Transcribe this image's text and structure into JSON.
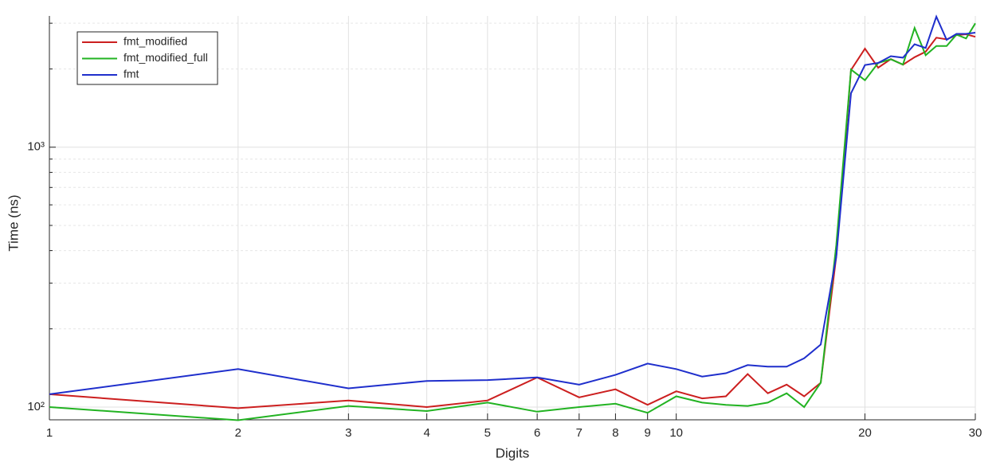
{
  "chart_data": {
    "type": "line",
    "x_label": "Digits",
    "y_label": "Time (ns)",
    "x": [
      1,
      2,
      3,
      4,
      5,
      6,
      7,
      8,
      9,
      10,
      11,
      12,
      13,
      14,
      15,
      16,
      17,
      18,
      19,
      20,
      21,
      22,
      23,
      24,
      25,
      26,
      27,
      28,
      29,
      30
    ],
    "series": [
      {
        "name": "fmt_modified",
        "color": "#cc1f1f",
        "values": [
          112,
          99,
          106,
          100,
          106,
          130,
          109,
          117,
          102,
          115,
          108,
          110,
          134,
          113,
          122,
          110,
          124,
          380,
          1983,
          2394,
          2022,
          2183,
          2078,
          2220,
          2330,
          2640,
          2600,
          2700,
          2720,
          2660
        ]
      },
      {
        "name": "fmt_modified_full",
        "color": "#22b322",
        "values": [
          100,
          89,
          101,
          96.5,
          104,
          96,
          100,
          103,
          95,
          110,
          104,
          102,
          101,
          104,
          113,
          100,
          124,
          420,
          1990,
          1810,
          2110,
          2180,
          2080,
          2877,
          2260,
          2450,
          2450,
          2710,
          2620,
          2997
        ]
      },
      {
        "name": "fmt",
        "color": "#1f2fcc",
        "values": [
          112,
          140,
          118,
          126,
          127,
          130,
          122,
          133,
          147,
          140,
          131,
          135,
          145,
          143,
          143,
          154,
          174,
          379,
          1614,
          2070,
          2110,
          2240,
          2210,
          2490,
          2410,
          3180,
          2590,
          2730,
          2730,
          2760
        ]
      }
    ],
    "xlim": [
      1,
      30
    ],
    "xticks": [
      1,
      2,
      3,
      4,
      5,
      6,
      7,
      8,
      9,
      10,
      20,
      30
    ],
    "x_log": true,
    "ylim": [
      89.3,
      3200
    ],
    "yticks": [
      {
        "value": 100,
        "label": "10²"
      },
      {
        "value": 1000,
        "label": "10³"
      }
    ],
    "y_log": true,
    "y_minor_ticks": [
      200,
      300,
      400,
      500,
      600,
      700,
      800,
      900,
      2000,
      3000
    ],
    "grid": true,
    "minor_grid": true,
    "legend": "upper left"
  }
}
